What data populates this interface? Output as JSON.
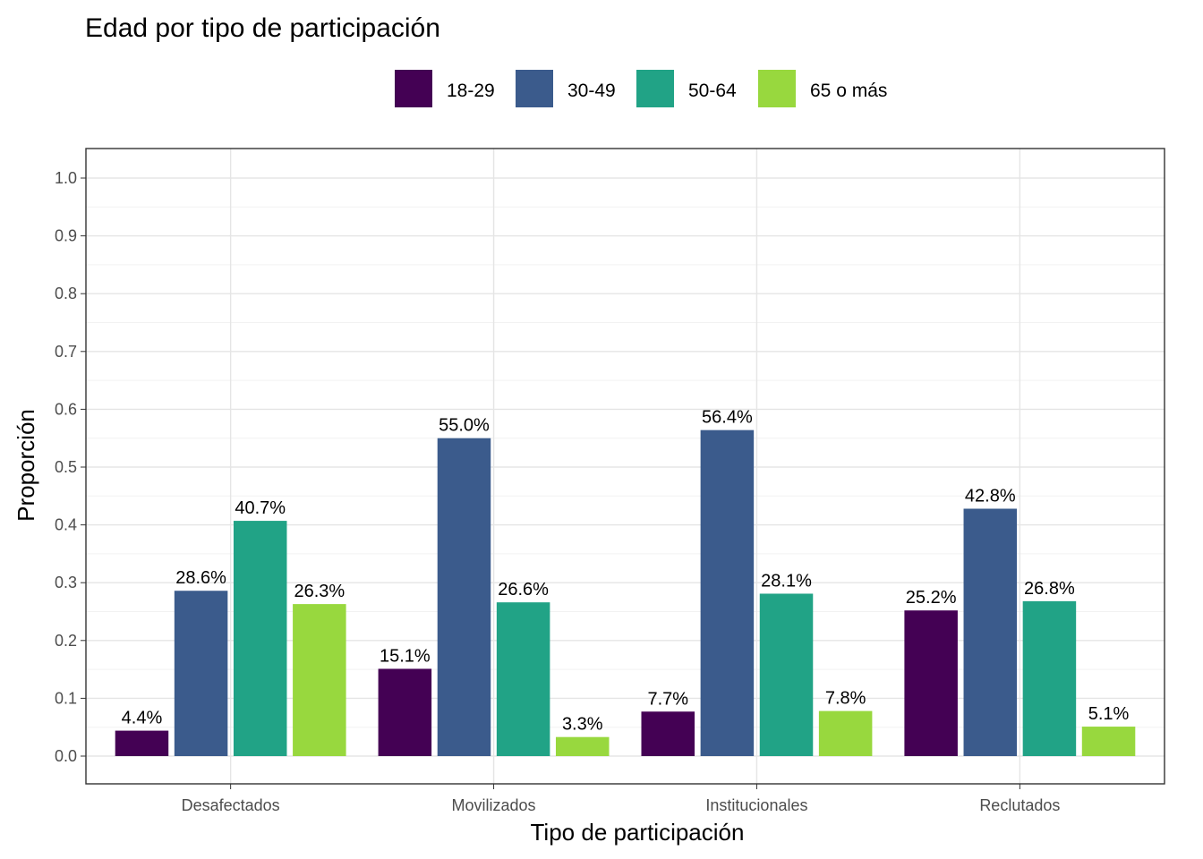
{
  "chart_data": {
    "type": "bar",
    "title": "Edad por tipo de participación",
    "xlabel": "Tipo de participación",
    "ylabel": "Proporción",
    "categories": [
      "Desafectados",
      "Movilizados",
      "Institucionales",
      "Reclutados"
    ],
    "series": [
      {
        "name": "18-29",
        "color": "#440154",
        "values": [
          0.044,
          0.151,
          0.077,
          0.252
        ],
        "labels": [
          "4.4%",
          "15.1%",
          "7.7%",
          "25.2%"
        ]
      },
      {
        "name": "30-49",
        "color": "#3b5b8c",
        "values": [
          0.286,
          0.55,
          0.564,
          0.428
        ],
        "labels": [
          "28.6%",
          "55.0%",
          "56.4%",
          "42.8%"
        ]
      },
      {
        "name": "50-64",
        "color": "#21a386",
        "values": [
          0.407,
          0.266,
          0.281,
          0.268
        ],
        "labels": [
          "40.7%",
          "26.6%",
          "28.1%",
          "26.8%"
        ]
      },
      {
        "name": "65 o más",
        "color": "#98d83e",
        "values": [
          0.263,
          0.033,
          0.078,
          0.051
        ],
        "labels": [
          "26.3%",
          "3.3%",
          "7.8%",
          "5.1%"
        ]
      }
    ],
    "ylim": [
      0,
      1.0
    ],
    "yticks": [
      "0.0",
      "0.1",
      "0.2",
      "0.3",
      "0.4",
      "0.5",
      "0.6",
      "0.7",
      "0.8",
      "0.9",
      "1.0"
    ],
    "grid": true,
    "legend_position": "top"
  }
}
